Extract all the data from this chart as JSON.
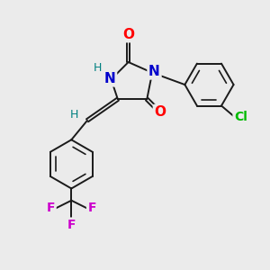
{
  "bg_color": "#ebebeb",
  "bond_color": "#1a1a1a",
  "bond_width": 1.4,
  "atom_colors": {
    "O": "#ff0000",
    "N": "#0000cc",
    "H": "#008080",
    "Cl": "#00bb00",
    "F": "#cc00cc",
    "C": "#1a1a1a"
  },
  "font_size_atom": 10,
  "font_size_H": 9,
  "xlim": [
    0,
    10
  ],
  "ylim": [
    0,
    10
  ]
}
